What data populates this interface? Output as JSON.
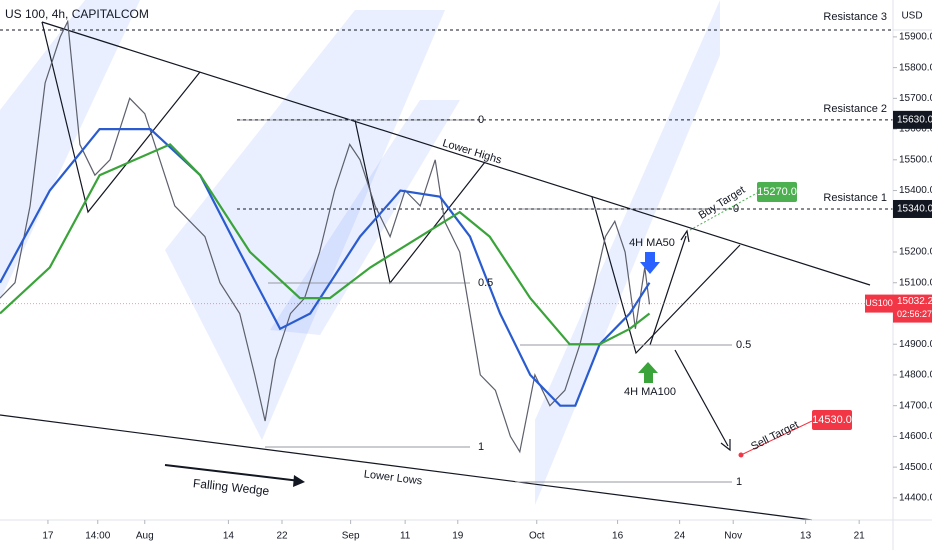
{
  "chart_data": {
    "type": "line",
    "title": "US 100, 4h, CAPITALCOM",
    "currency": "USD",
    "xlim": [
      0,
      95
    ],
    "ylim": [
      14328,
      16020
    ],
    "xticks": [
      {
        "value": 5.1,
        "label": "17"
      },
      {
        "value": 10.4,
        "label": "14:00"
      },
      {
        "value": 15.4,
        "label": "Aug"
      },
      {
        "value": 24.3,
        "label": "14"
      },
      {
        "value": 30,
        "label": "22"
      },
      {
        "value": 37.3,
        "label": "Sep"
      },
      {
        "value": 43.1,
        "label": "11"
      },
      {
        "value": 48.7,
        "label": "19"
      },
      {
        "value": 57.1,
        "label": "Oct"
      },
      {
        "value": 65.7,
        "label": "16"
      },
      {
        "value": 72.3,
        "label": "24"
      },
      {
        "value": 78,
        "label": "Nov"
      },
      {
        "value": 85.7,
        "label": "13"
      },
      {
        "value": 91.4,
        "label": "21"
      }
    ],
    "yticks": [
      {
        "value": 15900,
        "label": "15900.0"
      },
      {
        "value": 15800,
        "label": "15800.0"
      },
      {
        "value": 15700,
        "label": "15700.0"
      },
      {
        "value": 15600,
        "label": "15600.0"
      },
      {
        "value": 15500,
        "label": "15500.0"
      },
      {
        "value": 15400,
        "label": "15400.0"
      },
      {
        "value": 15200,
        "label": "15200.0"
      },
      {
        "value": 15100,
        "label": "15100.0"
      },
      {
        "value": 14900,
        "label": "14900.0"
      },
      {
        "value": 14800,
        "label": "14800.0"
      },
      {
        "value": 14700,
        "label": "14700.0"
      },
      {
        "value": 14600,
        "label": "14600.0"
      },
      {
        "value": 14500,
        "label": "14500.0"
      },
      {
        "value": 14400,
        "label": "14400.0"
      }
    ],
    "series": [
      {
        "name": "US100",
        "color": "#5d606b",
        "x": [
          0,
          1.6,
          3.2,
          4.8,
          6.4,
          7.2,
          8.5,
          10.1,
          11.7,
          13.8,
          15.4,
          17,
          18.6,
          20.2,
          21.8,
          23.4,
          25.5,
          27.1,
          28.2,
          29.3,
          30.9,
          32.4,
          34,
          35.6,
          37.2,
          38.3,
          39.9,
          41.5,
          43.1,
          44.7,
          46.3,
          47.3,
          48.9,
          50,
          51.1,
          52.7,
          54.3,
          55.3,
          56.9,
          58.5,
          60.1,
          61.7,
          63.3,
          64.4,
          65.4,
          66.5,
          67.6,
          68.6,
          69.1
        ],
        "values": [
          15050,
          15100,
          15350,
          15750,
          15900,
          15950,
          15550,
          15450,
          15500,
          15700,
          15650,
          15500,
          15350,
          15300,
          15250,
          15100,
          15000,
          14800,
          14650,
          14850,
          15000,
          15050,
          15200,
          15400,
          15550,
          15500,
          15350,
          15250,
          15400,
          15350,
          15500,
          15300,
          15200,
          15000,
          14800,
          14750,
          14600,
          14550,
          14800,
          14700,
          14750,
          14900,
          15100,
          15250,
          15300,
          15200,
          14950,
          15150,
          15030
        ]
      },
      {
        "name": "4H MA50",
        "color": "#2a5cd0",
        "x": [
          0,
          5.3,
          10.6,
          16,
          21.3,
          25.5,
          29.8,
          33,
          38.3,
          42.6,
          46.8,
          50,
          53.2,
          56.4,
          59.6,
          61.2,
          63.8,
          67,
          69.1
        ],
        "values": [
          15100,
          15400,
          15600,
          15600,
          15450,
          15200,
          14950,
          15000,
          15250,
          15400,
          15380,
          15250,
          15000,
          14800,
          14700,
          14700,
          14900,
          15000,
          15100
        ]
      },
      {
        "name": "4H MA100",
        "color": "#3aa33a",
        "x": [
          0,
          5.3,
          10.6,
          18.1,
          21.3,
          26.6,
          31.9,
          35.1,
          39.4,
          44.7,
          48.9,
          52.1,
          56.4,
          60.6,
          63.8,
          67,
          69.1
        ],
        "values": [
          15000,
          15150,
          15450,
          15550,
          15450,
          15200,
          15050,
          15050,
          15150,
          15250,
          15330,
          15250,
          15050,
          14900,
          14900,
          14950,
          15000
        ]
      }
    ],
    "last_price": {
      "value": 15032.2,
      "label": "15032.2",
      "countdown": "02:56:27",
      "color": "#f23645"
    },
    "price_levels": [
      {
        "value": 15630,
        "label": "15630.0",
        "name": "Resistance 2"
      },
      {
        "value": 15340,
        "label": "15340.0",
        "name": "Resistance 1"
      }
    ],
    "resistance_3": "Resistance 3",
    "targets": [
      {
        "name": "Buy Target",
        "value": 15270,
        "label": "15270.0",
        "color": "#4caf50"
      },
      {
        "name": "Sell Target",
        "value": 14530,
        "label": "14530.0",
        "color": "#f23645"
      }
    ],
    "annotations": {
      "lower_highs": "Lower Highs",
      "lower_lows": "Lower Lows",
      "falling_wedge": "Falling Wedge"
    },
    "fib_levels": [
      "0",
      "0.5",
      "1"
    ]
  }
}
